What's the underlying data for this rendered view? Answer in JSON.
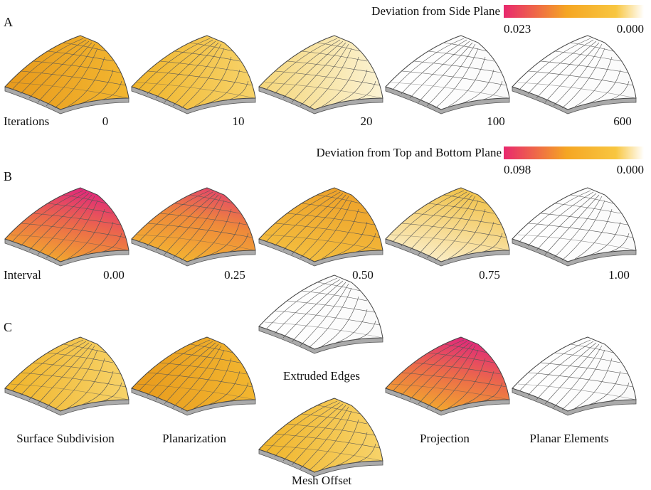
{
  "panels": [
    {
      "label": "A",
      "legend": {
        "title": "Deviation from Side Plane",
        "max": "0.023",
        "min": "0.000"
      },
      "axis_label": "Iterations",
      "steps": [
        "0",
        "10",
        "20",
        "100",
        "600"
      ]
    },
    {
      "label": "B",
      "legend": {
        "title": "Deviation from Top and Bottom Plane",
        "max": "0.098",
        "min": "0.000"
      },
      "axis_label": "Interval",
      "steps": [
        "0.00",
        "0.25",
        "0.50",
        "0.75",
        "1.00"
      ]
    },
    {
      "label": "C",
      "stages": [
        "Surface Subdivision",
        "Planarization",
        "Extruded Edges",
        "Mesh Offset",
        "Projection",
        "Planar Elements"
      ]
    }
  ]
}
